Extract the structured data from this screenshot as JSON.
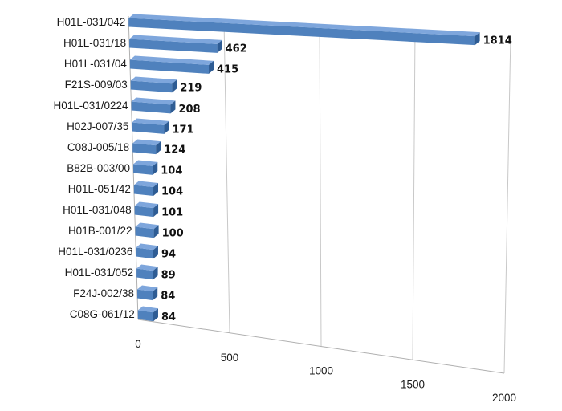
{
  "chart_data": {
    "type": "bar",
    "orientation": "horizontal",
    "style": "3d",
    "categories": [
      "H01L-031/042",
      "H01L-031/18",
      "H01L-031/04",
      "F21S-009/03",
      "H01L-031/0224",
      "H02J-007/35",
      "C08J-005/18",
      "B82B-003/00",
      "H01L-051/42",
      "H01L-031/048",
      "H01B-001/22",
      "H01L-031/0236",
      "H01L-031/052",
      "F24J-002/38",
      "C08G-061/12"
    ],
    "values": [
      1814,
      462,
      415,
      219,
      208,
      171,
      124,
      104,
      104,
      101,
      100,
      94,
      89,
      84,
      84
    ],
    "value_labels": [
      "1814",
      "462",
      "415",
      "219",
      "208",
      "171",
      "124",
      "104",
      "104",
      "101",
      "100",
      "94",
      "89",
      "84",
      "84"
    ],
    "xlim": [
      0,
      2000
    ],
    "xticks": [
      0,
      500,
      1000,
      1500,
      2000
    ],
    "xtick_labels": [
      "0",
      "500",
      "1000",
      "1500",
      "2000"
    ],
    "grid": true,
    "legend": "none",
    "colors": {
      "bar_front": "#4F81BD",
      "bar_top": "#7EA6DC",
      "bar_side": "#2E5C94"
    }
  }
}
